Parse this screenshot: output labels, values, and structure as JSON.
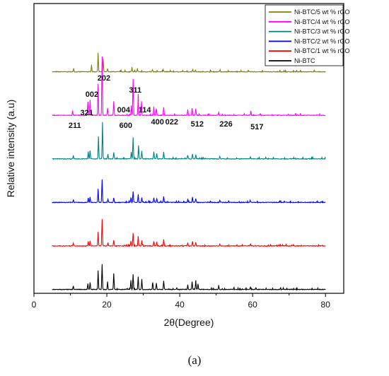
{
  "chart_data": {
    "type": "line",
    "xlabel": "2θ(Degree)",
    "ylabel": "Relative intensity (a.u)",
    "xlim": [
      0,
      85
    ],
    "x_ticks": [
      0,
      20,
      40,
      60,
      80
    ],
    "x_tick_labels": [
      "0",
      "20",
      "40",
      "60",
      "80"
    ],
    "legend_position": "top-right",
    "grid": false,
    "series": [
      {
        "name": "Ni-BTC/5 wt % rGO",
        "color": "#808000",
        "baseline_offset": 5,
        "peaks": [
          [
            10.9,
            0.12
          ],
          [
            15.8,
            0.22
          ],
          [
            17.6,
            0.6
          ],
          [
            19.0,
            0.42
          ],
          [
            20.2,
            0.1
          ],
          [
            26.9,
            0.14
          ],
          [
            28.4,
            0.1
          ],
          [
            32.5,
            0.06
          ],
          [
            35.5,
            0.08
          ],
          [
            43.5,
            0.06
          ],
          [
            44.3,
            0.05
          ],
          [
            51.0,
            0.04
          ]
        ]
      },
      {
        "name": "Ni-BTC/4 wt % rGO",
        "color": "#ff00ff",
        "baseline_offset": 4,
        "peaks": [
          [
            10.6,
            0.14
          ],
          [
            14.8,
            0.42
          ],
          [
            15.4,
            0.48
          ],
          [
            17.6,
            1.0
          ],
          [
            18.7,
            1.85
          ],
          [
            20.2,
            0.22
          ],
          [
            21.9,
            0.45
          ],
          [
            26.7,
            0.3
          ],
          [
            27.2,
            1.15
          ],
          [
            28.6,
            0.62
          ],
          [
            29.5,
            0.45
          ],
          [
            32.9,
            0.28
          ],
          [
            33.6,
            0.2
          ],
          [
            35.6,
            0.25
          ],
          [
            42.2,
            0.18
          ],
          [
            43.4,
            0.22
          ],
          [
            44.4,
            0.2
          ],
          [
            50.7,
            0.1
          ],
          [
            59.5,
            0.09
          ]
        ]
      },
      {
        "name": "Ni-BTC/3 wt % rGO",
        "color": "#008080",
        "baseline_offset": 3,
        "peaks": [
          [
            10.8,
            0.1
          ],
          [
            14.9,
            0.22
          ],
          [
            15.4,
            0.26
          ],
          [
            17.7,
            0.7
          ],
          [
            18.8,
            1.15
          ],
          [
            20.3,
            0.15
          ],
          [
            21.9,
            0.2
          ],
          [
            26.7,
            0.22
          ],
          [
            27.2,
            0.68
          ],
          [
            28.7,
            0.42
          ],
          [
            29.6,
            0.25
          ],
          [
            32.9,
            0.22
          ],
          [
            33.7,
            0.18
          ],
          [
            35.6,
            0.22
          ],
          [
            42.2,
            0.12
          ],
          [
            43.5,
            0.16
          ],
          [
            44.4,
            0.14
          ],
          [
            51.0,
            0.08
          ],
          [
            59.4,
            0.06
          ]
        ]
      },
      {
        "name": "Ni-BTC/2 wt % rGO",
        "color": "#0000ff",
        "baseline_offset": 2,
        "peaks": [
          [
            10.8,
            0.08
          ],
          [
            14.9,
            0.14
          ],
          [
            15.4,
            0.16
          ],
          [
            17.6,
            0.42
          ],
          [
            18.7,
            0.72
          ],
          [
            20.3,
            0.1
          ],
          [
            21.9,
            0.15
          ],
          [
            26.6,
            0.15
          ],
          [
            27.2,
            0.35
          ],
          [
            28.6,
            0.25
          ],
          [
            29.6,
            0.15
          ],
          [
            32.9,
            0.14
          ],
          [
            33.7,
            0.12
          ],
          [
            35.6,
            0.18
          ],
          [
            42.2,
            0.1
          ],
          [
            43.5,
            0.14
          ],
          [
            44.4,
            0.12
          ],
          [
            51.0,
            0.07
          ],
          [
            59.4,
            0.05
          ]
        ]
      },
      {
        "name": "Ni-BTC/1 wt % rGO",
        "color": "#ff0000",
        "baseline_offset": 1,
        "peaks": [
          [
            10.8,
            0.08
          ],
          [
            14.9,
            0.14
          ],
          [
            15.4,
            0.16
          ],
          [
            17.6,
            0.45
          ],
          [
            18.7,
            0.85
          ],
          [
            20.3,
            0.1
          ],
          [
            21.9,
            0.18
          ],
          [
            26.6,
            0.16
          ],
          [
            27.2,
            0.4
          ],
          [
            28.6,
            0.3
          ],
          [
            29.6,
            0.18
          ],
          [
            32.9,
            0.15
          ],
          [
            33.7,
            0.12
          ],
          [
            35.6,
            0.2
          ],
          [
            42.2,
            0.1
          ],
          [
            43.5,
            0.14
          ],
          [
            44.4,
            0.12
          ],
          [
            51.0,
            0.07
          ],
          [
            59.4,
            0.05
          ]
        ]
      },
      {
        "name": "Ni-BTC",
        "color": "#000000",
        "baseline_offset": 0,
        "peaks": [
          [
            10.8,
            0.1
          ],
          [
            14.8,
            0.18
          ],
          [
            15.4,
            0.22
          ],
          [
            17.6,
            0.6
          ],
          [
            18.7,
            0.8
          ],
          [
            20.2,
            0.25
          ],
          [
            21.9,
            0.5
          ],
          [
            26.6,
            0.3
          ],
          [
            27.2,
            0.48
          ],
          [
            28.6,
            0.4
          ],
          [
            29.6,
            0.32
          ],
          [
            32.6,
            0.22
          ],
          [
            33.6,
            0.2
          ],
          [
            35.6,
            0.28
          ],
          [
            42.2,
            0.15
          ],
          [
            43.4,
            0.25
          ],
          [
            44.4,
            0.28
          ],
          [
            45.0,
            0.18
          ],
          [
            50.7,
            0.1
          ],
          [
            59.4,
            0.08
          ]
        ]
      }
    ],
    "annotations": [
      {
        "text": "211",
        "x": 11.2,
        "series_index": 1
      },
      {
        "text": "321",
        "x": 14.5,
        "series_index": 1
      },
      {
        "text": "002",
        "x": 15.9,
        "series_index": 1
      },
      {
        "text": "202",
        "x": 19.2,
        "series_index": 1
      },
      {
        "text": "600",
        "x": 25.2,
        "series_index": 1
      },
      {
        "text": "004",
        "x": 24.6,
        "series_index": 1
      },
      {
        "text": "311",
        "x": 27.8,
        "series_index": 1
      },
      {
        "text": "114",
        "x": 30.4,
        "series_index": 1
      },
      {
        "text": "400",
        "x": 33.9,
        "series_index": 1
      },
      {
        "text": "022",
        "x": 37.8,
        "series_index": 1
      },
      {
        "text": "512",
        "x": 44.8,
        "series_index": 1
      },
      {
        "text": "226",
        "x": 52.7,
        "series_index": 1
      },
      {
        "text": "517",
        "x": 61.2,
        "series_index": 1
      }
    ]
  },
  "caption": "(a)"
}
